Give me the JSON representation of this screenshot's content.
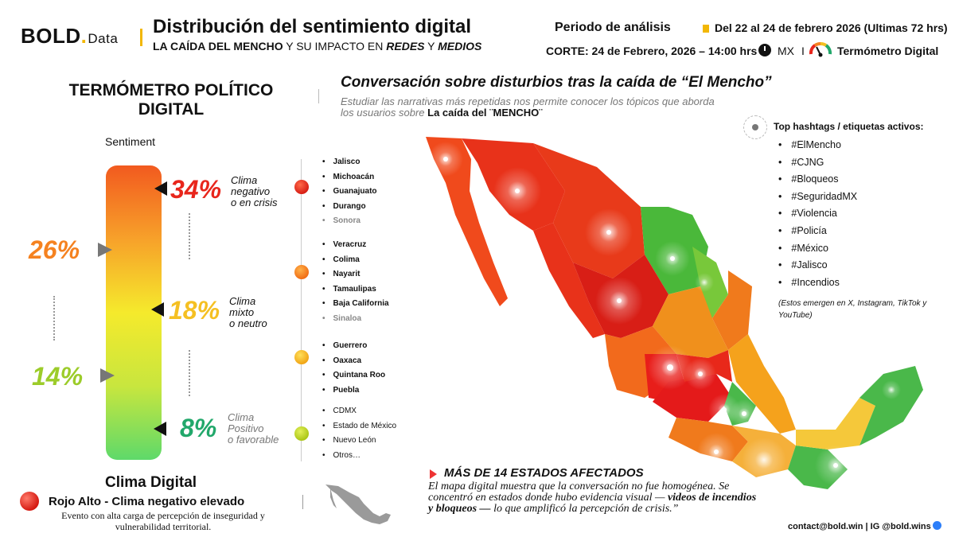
{
  "header": {
    "logo_main": "BOLD",
    "logo_dot": ".",
    "logo_small": "Data",
    "title": "Distribución del sentimiento digital",
    "subtitle_part1": "LA CAÍDA DEL MENCHO",
    "subtitle_part2": " Y SU IMPACTO EN ",
    "subtitle_redes": "REDES",
    "subtitle_part3": " Y ",
    "subtitle_medios": "MEDIOS",
    "period_label": "Periodo de análisis",
    "period_value": "Del 22 al 24 de febrero 2026  (Ultimas 72 hrs)",
    "cutoff": "CORTE: 24 de Febrero, 2026  – 14:00 hrs",
    "country": "MX",
    "separator": "I",
    "brand": "Termómetro Digital"
  },
  "left": {
    "title": "TERMÓMETRO POLÍTICO DIGITAL",
    "sentiment_label": "Sentiment",
    "side_pct_top": "26%",
    "side_pct_bottom": "14%",
    "levels": [
      {
        "pct": "34%",
        "label1": "Clima",
        "label2": "negativo",
        "label3": "o en crisis",
        "color": "#e8261c"
      },
      {
        "pct": "18%",
        "label1": "Clima",
        "label2": "mixto",
        "label3": "o neutro",
        "color": "#f5c022"
      },
      {
        "pct": "8%",
        "label1": "Clima",
        "label2": "Positivo",
        "label3": "o favorable",
        "color": "#22a86b"
      }
    ],
    "groups": [
      [
        "Jalisco",
        "Michoacán",
        "Guanajuato",
        "Durango",
        "Sonora"
      ],
      [
        "Veracruz",
        "Colima",
        "Nayarit",
        "Tamaulipas",
        "Baja California",
        "Sinaloa"
      ],
      [
        "Guerrero",
        "Oaxaca",
        "Quintana Roo",
        "Puebla"
      ],
      [
        "CDMX",
        "Estado de México",
        "Nuevo León",
        "Otros…"
      ]
    ],
    "climate_title": "Clima Digital",
    "alert_label": "Rojo Alto -  Clima negativo elevado",
    "alert_desc": "Evento con alta carga de percepción  de inseguridad y vulnerabilidad territorial."
  },
  "center": {
    "title": "Conversación sobre disturbios tras la caída de “El Mencho”",
    "desc": "Estudiar las narrativas más repetidas nos permite conocer los tópicos que aborda los usuarios sobre ",
    "desc_bold": "La caída del ¨MENCHO¨",
    "states_title": "MÁS DE 14 ESTADOS AFECTADOS",
    "quote_part1": "El mapa digital muestra que la conversación no fue homogénea. Se concentró en estados donde hubo evidencia visual — ",
    "quote_bold": "videos de incendios y bloqueos —",
    "quote_part2": " lo que amplificó la percepción de crisis.”"
  },
  "hashtags": {
    "title": "Top hashtags / etiquetas activos:",
    "items": [
      "#ElMencho",
      "#CJNG",
      "#Bloqueos",
      "#SeguridadMX",
      "#Violencia",
      "#Policía",
      "#México",
      "#Jalisco",
      "#Incendios"
    ],
    "note": "(Estos emergen en X, Instagram, TikTok y YouTube)"
  },
  "footer": {
    "contact": "contact@bold.win  |  IG @bold.wins"
  },
  "colors": {
    "red": "#e8261c",
    "orange": "#f58220",
    "yellow": "#f5c022",
    "green": "#22a86b",
    "accent": "#f2b705"
  }
}
